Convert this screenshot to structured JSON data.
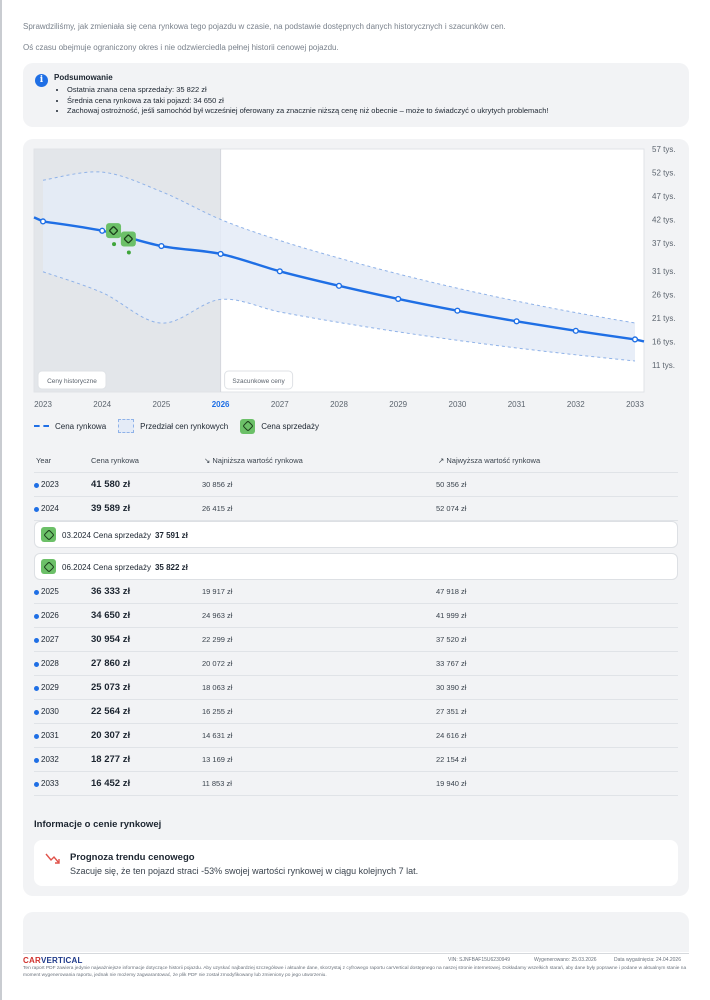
{
  "intro": {
    "line1": "Sprawdziliśmy, jak zmieniała się cena rynkowa tego pojazdu w czasie, na podstawie dostępnych danych historycznych i szacunków cen.",
    "line2": "Oś czasu obejmuje ograniczony okres i nie odzwierciedla pełnej historii cenowej pojazdu."
  },
  "summary": {
    "icon": "info-icon",
    "title": "Podsumowanie",
    "items": [
      "Ostatnia znana cena sprzedaży: 35 822 zł",
      "Średnia cena rynkowa za taki pojazd: 34 650 zł",
      "Zachowaj ostrożność, jeśli samochód był wcześniej oferowany za znacznie niższą cenę niż obecnie – może to świadczyć o ukrytych problemach!"
    ]
  },
  "chart_data": {
    "type": "line",
    "x": [
      2023,
      2024,
      2025,
      2026,
      2027,
      2028,
      2029,
      2030,
      2031,
      2032,
      2033
    ],
    "x_tick_labels": [
      "2023",
      "2024",
      "2025",
      "2026",
      "2027",
      "2028",
      "2029",
      "2030",
      "2031",
      "2032",
      "2033"
    ],
    "highlight_x_label": "2026",
    "series": [
      {
        "name": "Cena rynkowa",
        "values": [
          41580,
          39589,
          36333,
          34650,
          30954,
          27860,
          25073,
          22564,
          20307,
          18277,
          16452
        ]
      }
    ],
    "band": {
      "name": "Przedział cen rynkowych",
      "low": [
        30856,
        26415,
        19917,
        24963,
        22299,
        20072,
        18063,
        16255,
        14631,
        13169,
        11853
      ],
      "high": [
        50356,
        52074,
        47918,
        41999,
        37520,
        33767,
        30390,
        27351,
        24616,
        22154,
        19940
      ]
    },
    "sales": [
      {
        "x": 2024.2,
        "y": 37591
      },
      {
        "x": 2024.45,
        "y": 35822
      }
    ],
    "y_tick_labels": [
      "57 tys.",
      "52 tys.",
      "47 tys.",
      "42 tys.",
      "37 tys.",
      "31 tys.",
      "26 tys.",
      "21 tys.",
      "16 tys.",
      "11 tys."
    ],
    "y_ticks": [
      57,
      52,
      47,
      42,
      37,
      31,
      26,
      21,
      16,
      11
    ],
    "ylim": [
      11000,
      57000
    ],
    "region_labels": [
      "Ceny historyczne",
      "Szacunkowe ceny"
    ],
    "legend": [
      "Cena rynkowa",
      "Przedział cen rynkowych",
      "Cena sprzedaży"
    ],
    "colors": {
      "line": "#1f6fe5",
      "band": "#e4ebf7",
      "band_border": "#8fb2e8",
      "sale": "#6cc068"
    }
  },
  "table": {
    "headers": [
      "Year",
      "Cena rynkowa",
      "↘ Najniższa wartość rynkowa",
      "↗ Najwyższa wartość rynkowa"
    ],
    "rows_before": [
      {
        "year": "2023",
        "market": "41 580 zł",
        "low": "30 856 zł",
        "high": "50 356 zł"
      },
      {
        "year": "2024",
        "market": "39 589 zł",
        "low": "26 415 zł",
        "high": "52 074 zł"
      }
    ],
    "sales": [
      {
        "date": "03.2024",
        "label": "Cena sprzedaży",
        "price": "37 591 zł"
      },
      {
        "date": "06.2024",
        "label": "Cena sprzedaży",
        "price": "35 822 zł"
      }
    ],
    "rows_after": [
      {
        "year": "2025",
        "market": "36 333 zł",
        "low": "19 917 zł",
        "high": "47 918 zł"
      },
      {
        "year": "2026",
        "market": "34 650 zł",
        "low": "24 963 zł",
        "high": "41 999 zł"
      },
      {
        "year": "2027",
        "market": "30 954 zł",
        "low": "22 299 zł",
        "high": "37 520 zł"
      },
      {
        "year": "2028",
        "market": "27 860 zł",
        "low": "20 072 zł",
        "high": "33 767 zł"
      },
      {
        "year": "2029",
        "market": "25 073 zł",
        "low": "18 063 zł",
        "high": "30 390 zł"
      },
      {
        "year": "2030",
        "market": "22 564 zł",
        "low": "16 255 zł",
        "high": "27 351 zł"
      },
      {
        "year": "2031",
        "market": "20 307 zł",
        "low": "14 631 zł",
        "high": "24 616 zł"
      },
      {
        "year": "2032",
        "market": "18 277 zł",
        "low": "13 169 zł",
        "high": "22 154 zł"
      },
      {
        "year": "2033",
        "market": "16 452 zł",
        "low": "11 853 zł",
        "high": "19 940 zł"
      }
    ]
  },
  "info": {
    "title": "Informacje o cenie rynkowej",
    "forecast_icon": "trend-down-icon",
    "forecast_title": "Prognoza trendu cenowego",
    "forecast_text": "Szacuje się, że ten pojazd straci -53% swojej wartości rynkowej w ciągu kolejnych 7 lat."
  },
  "footer": {
    "brand_a": "CAR",
    "brand_b": "VERTICAL",
    "vin": "VIN: SJNFBAF15U6230949",
    "generated": "Wygenerowano: 25.03.2026",
    "expiry": "Data wygaśnięcia: 24.04.2026",
    "note": "Ten raport PDF zawiera jedynie najważniejsze informacje dotyczące historii pojazdu. Aby uzyskać najbardziej szczegółowe i aktualne dane, skorzystaj z cyfrowego raportu carVertical dostępnego na naszej stronie internetowej. Dokładamy wszelkich starań, aby dane były poprawne i podane w aktualnym stanie na moment wygenerowania raportu, jednak nie możemy zagwarantować, że plik PDF nie został zmodyfikowany lub zmieniony po jego utworzeniu."
  }
}
